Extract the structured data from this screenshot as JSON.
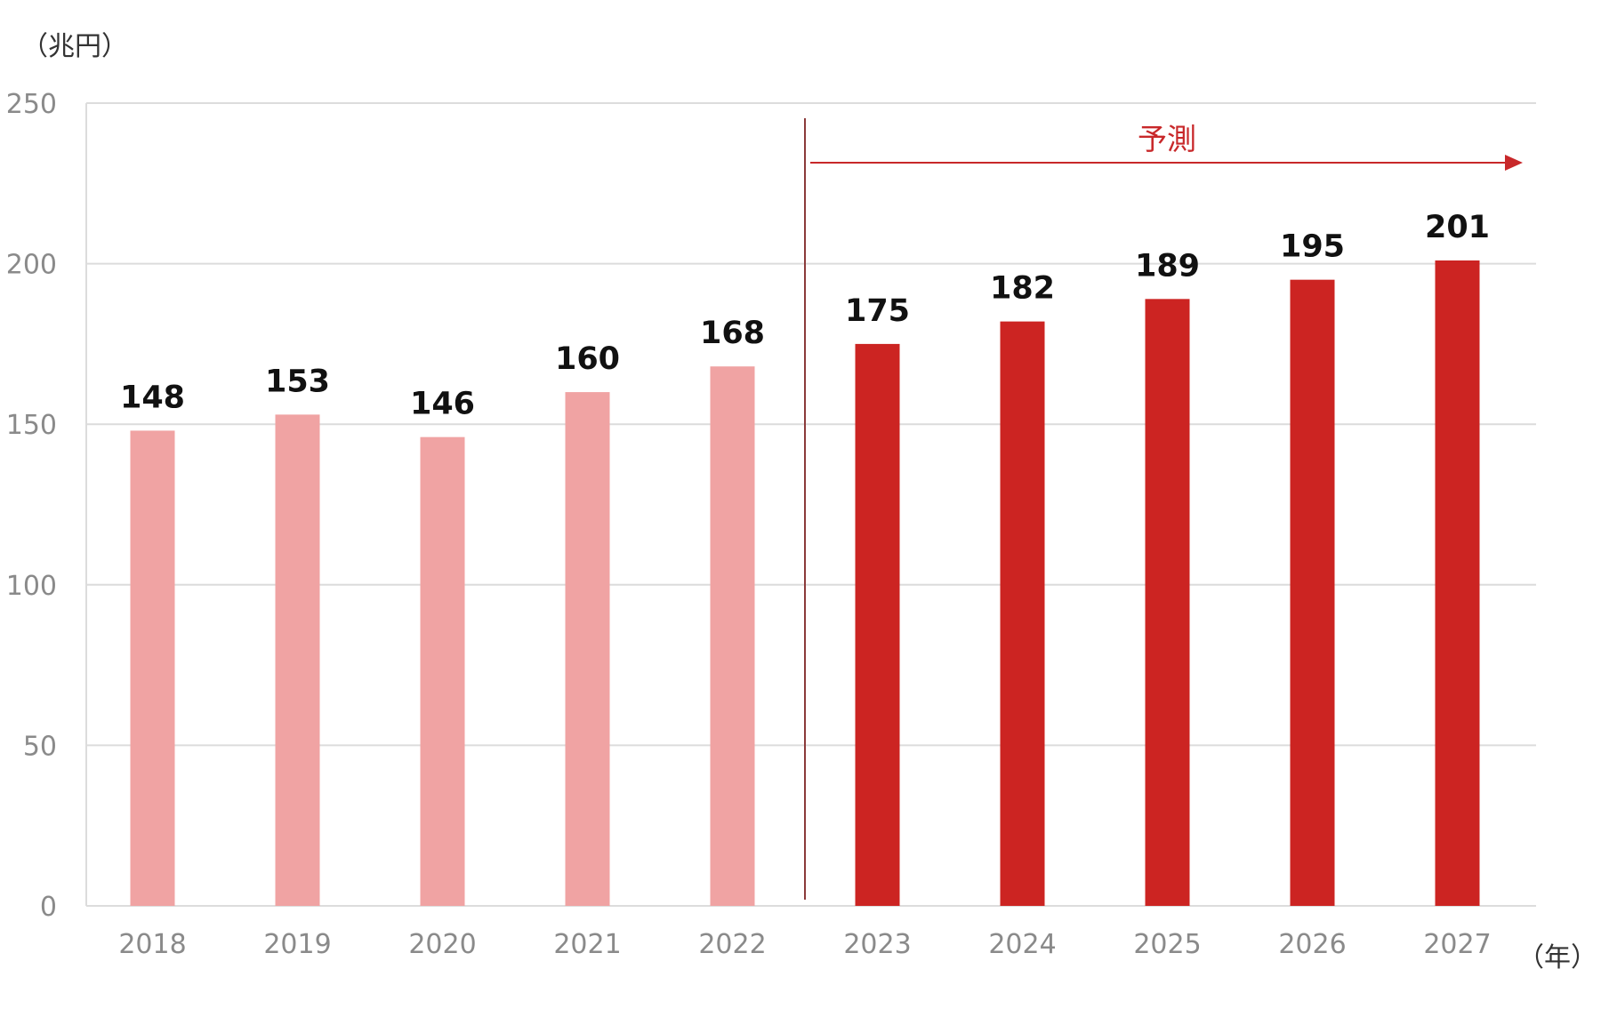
{
  "chart_data": {
    "type": "bar",
    "y_unit_label": "（兆円）",
    "x_unit_label": "（年）",
    "categories": [
      "2018",
      "2019",
      "2020",
      "2021",
      "2022",
      "2023",
      "2024",
      "2025",
      "2026",
      "2027"
    ],
    "values": [
      148,
      153,
      146,
      160,
      168,
      175,
      182,
      189,
      195,
      201
    ],
    "forecast_from_index": 5,
    "forecast_label": "予測",
    "ylim": [
      0,
      250
    ],
    "yticks": [
      0,
      50,
      100,
      150,
      200,
      250
    ],
    "grid": true,
    "colors": {
      "actual": "#f0a3a3",
      "forecast": "#cc2422",
      "annotation": "#c8282a",
      "grid": "#dcdcdc",
      "divider": "#8b3a3a"
    }
  }
}
